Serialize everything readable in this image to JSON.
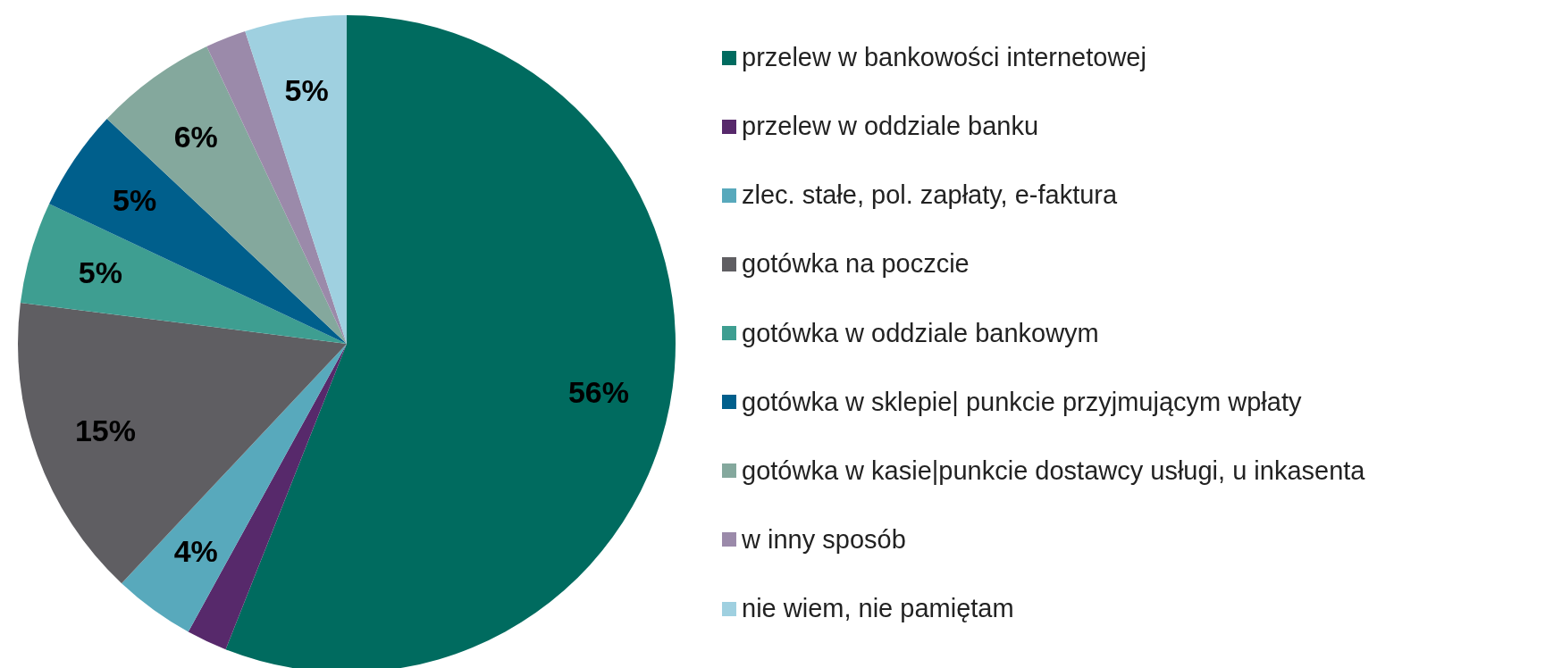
{
  "chart_data": {
    "type": "pie",
    "categories": [
      "przelew w bankowości internetowej",
      "przelew w oddziale banku",
      "zlec. stałe, pol. zapłaty, e-faktura",
      "gotówka na poczcie",
      "gotówka w oddziale bankowym",
      "gotówka w sklepie| punkcie przyjmującym wpłaty",
      "gotówka w kasie|punkcie dostawcy usługi, u inkasenta",
      "w inny sposób",
      "nie wiem, nie pamiętam"
    ],
    "values": [
      56,
      2,
      4,
      15,
      5,
      5,
      6,
      2,
      5
    ],
    "value_labels": [
      "56%",
      null,
      "4%",
      "15%",
      "5%",
      "5%",
      "6%",
      null,
      "5%"
    ],
    "colors": [
      "#006b5f",
      "#57296b",
      "#58a9bc",
      "#5f5e62",
      "#3e9e91",
      "#005f8c",
      "#84a89d",
      "#9b8aaa",
      "#9fd0e0"
    ],
    "legend": "right"
  }
}
